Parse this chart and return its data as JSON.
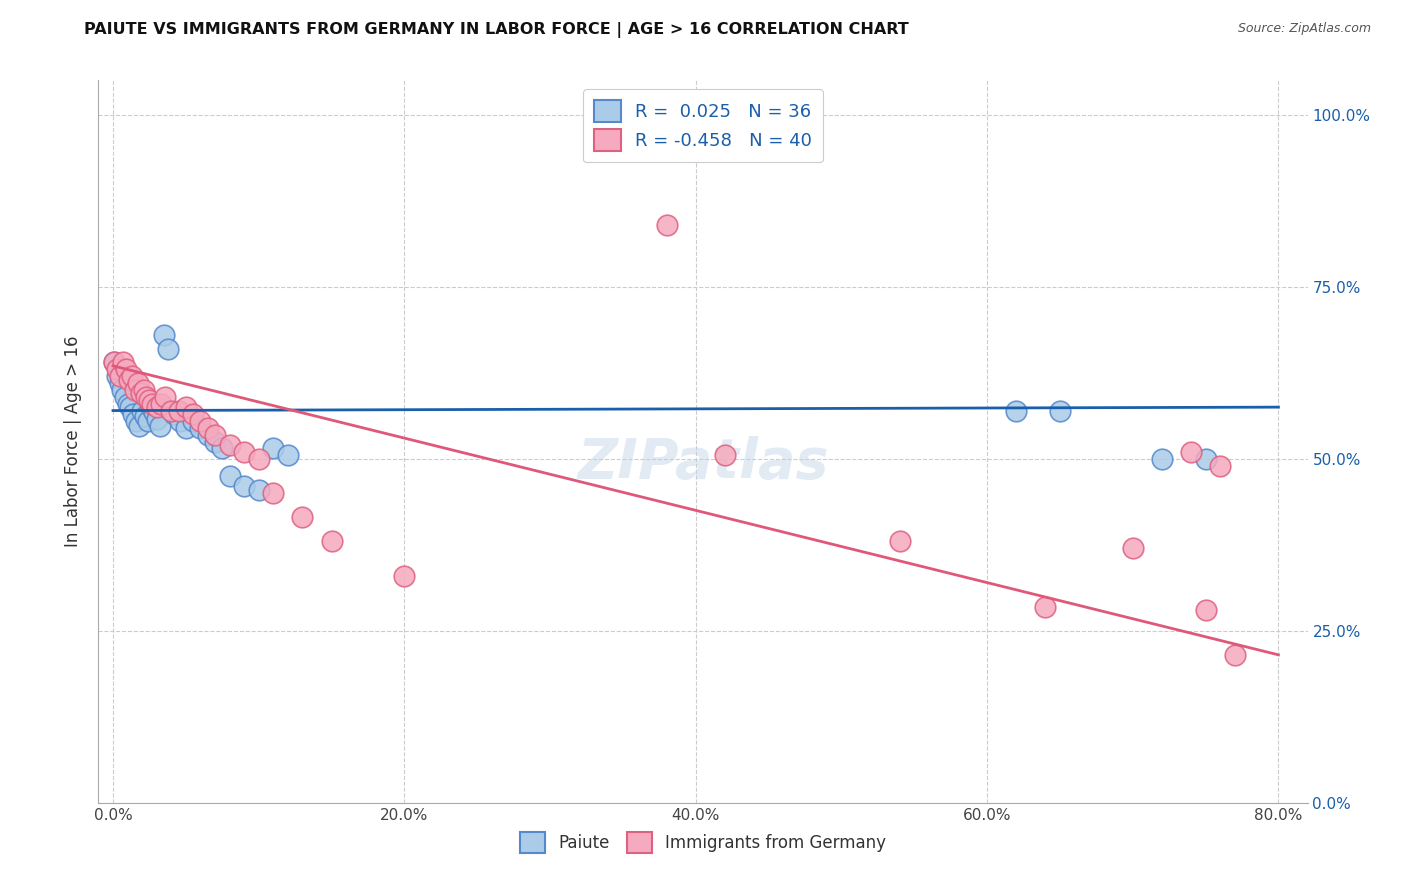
{
  "title": "PAIUTE VS IMMIGRANTS FROM GERMANY IN LABOR FORCE | AGE > 16 CORRELATION CHART",
  "source": "Source: ZipAtlas.com",
  "ylabel": "In Labor Force | Age > 16",
  "xlabel_ticks": [
    "0.0%",
    "20.0%",
    "40.0%",
    "60.0%",
    "80.0%"
  ],
  "xlabel_vals": [
    0.0,
    0.2,
    0.4,
    0.6,
    0.8
  ],
  "ylabel_ticks": [
    "0.0%",
    "25.0%",
    "50.0%",
    "75.0%",
    "100.0%"
  ],
  "ylabel_vals": [
    0.0,
    0.25,
    0.5,
    0.75,
    1.0
  ],
  "xlim": [
    -0.01,
    0.82
  ],
  "ylim": [
    0.0,
    1.05
  ],
  "paiute_color": "#aacce8",
  "germany_color": "#f5aabf",
  "paiute_edge": "#5588cc",
  "germany_edge": "#e06080",
  "line_blue": "#1a5faa",
  "line_pink": "#e05878",
  "legend_R1": "R =  0.025   N = 36",
  "legend_R2": "R = -0.458   N = 40",
  "blue_line_y0": 0.57,
  "blue_line_y1": 0.575,
  "pink_line_y0": 0.635,
  "pink_line_y1": 0.215,
  "paiute_x": [
    0.001,
    0.003,
    0.005,
    0.006,
    0.008,
    0.01,
    0.012,
    0.014,
    0.016,
    0.018,
    0.02,
    0.022,
    0.024,
    0.026,
    0.028,
    0.03,
    0.032,
    0.035,
    0.038,
    0.042,
    0.046,
    0.05,
    0.055,
    0.06,
    0.065,
    0.07,
    0.075,
    0.08,
    0.09,
    0.1,
    0.11,
    0.12,
    0.62,
    0.65,
    0.72,
    0.75
  ],
  "paiute_y": [
    0.64,
    0.62,
    0.61,
    0.6,
    0.59,
    0.58,
    0.575,
    0.565,
    0.555,
    0.548,
    0.57,
    0.562,
    0.555,
    0.575,
    0.568,
    0.558,
    0.548,
    0.68,
    0.66,
    0.565,
    0.555,
    0.545,
    0.555,
    0.545,
    0.535,
    0.525,
    0.515,
    0.475,
    0.46,
    0.455,
    0.515,
    0.505,
    0.57,
    0.57,
    0.5,
    0.5
  ],
  "germany_x": [
    0.001,
    0.003,
    0.005,
    0.007,
    0.009,
    0.011,
    0.013,
    0.015,
    0.017,
    0.019,
    0.021,
    0.023,
    0.025,
    0.027,
    0.03,
    0.033,
    0.036,
    0.04,
    0.045,
    0.05,
    0.055,
    0.06,
    0.065,
    0.07,
    0.08,
    0.09,
    0.1,
    0.11,
    0.13,
    0.15,
    0.2,
    0.38,
    0.42,
    0.54,
    0.64,
    0.7,
    0.74,
    0.75,
    0.76,
    0.77
  ],
  "germany_y": [
    0.64,
    0.63,
    0.62,
    0.64,
    0.63,
    0.615,
    0.62,
    0.6,
    0.61,
    0.595,
    0.6,
    0.59,
    0.585,
    0.58,
    0.575,
    0.58,
    0.59,
    0.57,
    0.57,
    0.575,
    0.565,
    0.555,
    0.545,
    0.535,
    0.52,
    0.51,
    0.5,
    0.45,
    0.415,
    0.38,
    0.33,
    0.84,
    0.505,
    0.38,
    0.285,
    0.37,
    0.51,
    0.28,
    0.49,
    0.215
  ],
  "background_color": "#ffffff",
  "grid_color": "#cccccc"
}
